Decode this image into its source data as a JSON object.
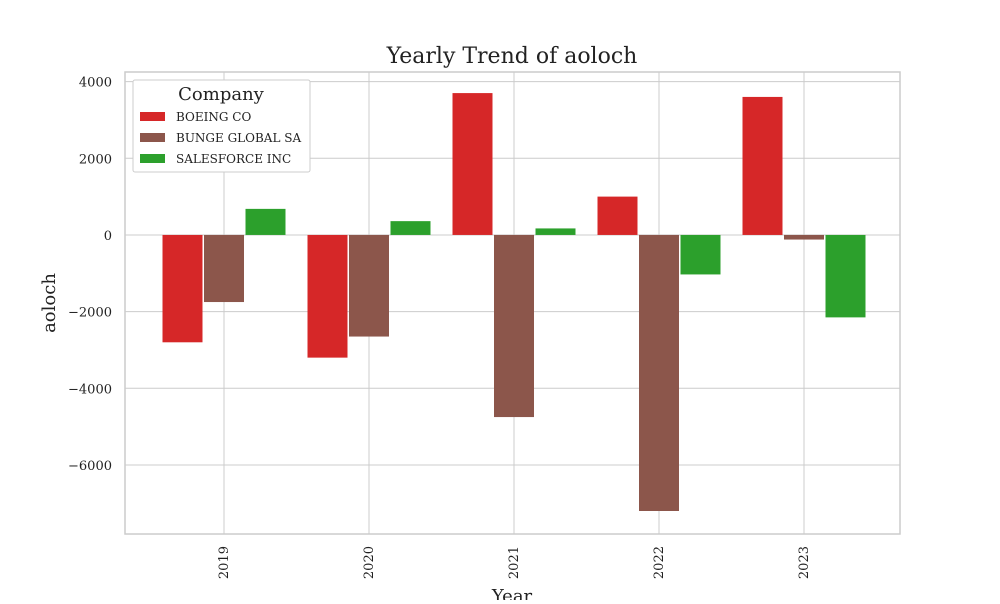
{
  "chart_data": {
    "type": "bar",
    "title": "Yearly Trend of aoloch",
    "xlabel": "Year",
    "ylabel": "aoloch",
    "categories": [
      "2019",
      "2020",
      "2021",
      "2022",
      "2023"
    ],
    "ylim": [
      -7800,
      4250
    ],
    "yticks": [
      -6000,
      -4000,
      -2000,
      0,
      2000,
      4000
    ],
    "ytick_labels": [
      "−6000",
      "−4000",
      "−2000",
      "0",
      "2000",
      "4000"
    ],
    "grid": true,
    "legend": {
      "title": "Company",
      "placement": "top-left"
    },
    "series": [
      {
        "name": "BOEING CO",
        "color": "#d62728",
        "values": [
          -2800,
          -3200,
          3700,
          1000,
          3600
        ]
      },
      {
        "name": "BUNGE GLOBAL SA",
        "color": "#8c564b",
        "values": [
          -1750,
          -2650,
          -4750,
          -7200,
          -120
        ]
      },
      {
        "name": "SALESFORCE INC",
        "color": "#2ca02c",
        "values": [
          680,
          360,
          170,
          -1030,
          -2150
        ]
      }
    ]
  }
}
